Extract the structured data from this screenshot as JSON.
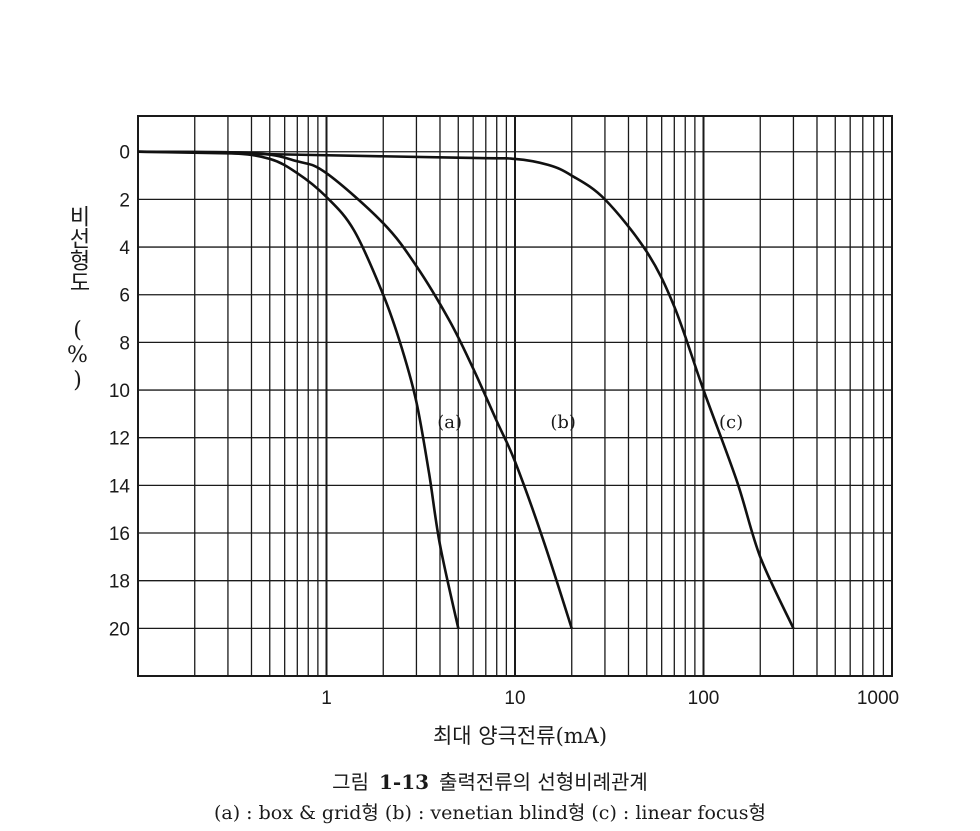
{
  "chart_data": {
    "type": "line",
    "x_scale": "log",
    "xlim": [
      0.1,
      1000
    ],
    "ylim": [
      -1.5,
      22
    ],
    "y_inverted": true,
    "grid": true,
    "xlabel": "최대 양극전류(mA)",
    "ylabel": "비선형도 (%)",
    "x_ticks": [
      {
        "value": 1,
        "label": "1"
      },
      {
        "value": 10,
        "label": "10"
      },
      {
        "value": 100,
        "label": "100"
      },
      {
        "value": 1000,
        "label": "1000"
      }
    ],
    "y_ticks": [
      {
        "value": 0,
        "label": "0"
      },
      {
        "value": 2,
        "label": "2"
      },
      {
        "value": 4,
        "label": "4"
      },
      {
        "value": 6,
        "label": "6"
      },
      {
        "value": 8,
        "label": "8"
      },
      {
        "value": 10,
        "label": "10"
      },
      {
        "value": 12,
        "label": "12"
      },
      {
        "value": 14,
        "label": "14"
      },
      {
        "value": 16,
        "label": "16"
      },
      {
        "value": 18,
        "label": "18"
      },
      {
        "value": 20,
        "label": "20"
      }
    ],
    "series": [
      {
        "name": "(a)",
        "x": [
          0.1,
          0.3,
          0.5,
          0.7,
          1.0,
          1.4,
          2.0,
          2.5,
          3.0,
          3.5,
          4.0,
          5.0
        ],
        "y": [
          0,
          0.05,
          0.3,
          0.9,
          1.9,
          3.3,
          6.0,
          8.2,
          10.5,
          13.5,
          16.5,
          20.0
        ]
      },
      {
        "name": "(b)",
        "x": [
          0.1,
          0.4,
          0.7,
          1.0,
          2.0,
          3.0,
          4.5,
          6.0,
          8.0,
          10.0,
          14.0,
          20.0
        ],
        "y": [
          0,
          0.05,
          0.4,
          0.9,
          3.0,
          4.8,
          7.1,
          9.1,
          11.3,
          13.0,
          16.2,
          20.0
        ]
      },
      {
        "name": "(c)",
        "x": [
          0.1,
          5.0,
          10.0,
          15.0,
          20.0,
          30.0,
          50.0,
          70.0,
          100.0,
          150.0,
          200.0,
          300.0
        ],
        "y": [
          0,
          0.25,
          0.3,
          0.55,
          1.0,
          2.0,
          4.2,
          6.5,
          10.0,
          13.8,
          17.0,
          20.0
        ]
      }
    ],
    "annotations": [
      {
        "text": "(a)",
        "x": 4.5,
        "y": 11.3
      },
      {
        "text": "(b)",
        "x": 18.0,
        "y": 11.3
      },
      {
        "text": "(c)",
        "x": 140.0,
        "y": 11.3
      }
    ]
  },
  "caption": {
    "title_prefix": "그림",
    "title_number": "1-13",
    "title_text": "출력전류의 선형비례관계",
    "legend_line": "(a) : box & grid형  (b) : venetian blind형  (c) : linear focus형"
  }
}
